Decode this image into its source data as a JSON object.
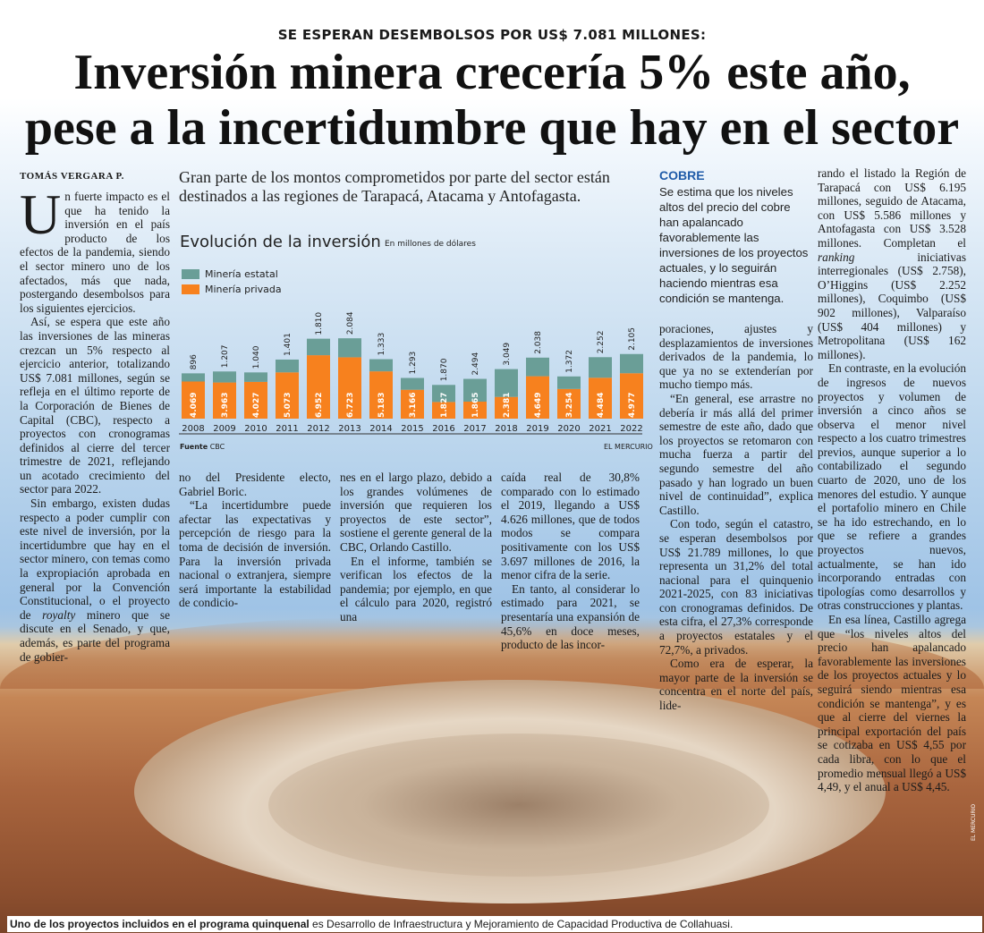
{
  "kicker": "SE ESPERAN DESEMBOLSOS POR US$ 7.081 MILLONES:",
  "headline_line1": "Inversión minera crecería 5% este año,",
  "headline_line2": "pese a la incertidumbre que hay en el sector",
  "byline": "TOMÁS VERGARA P.",
  "deck": "Gran parte de los montos comprometidos por parte del sector están destinados a las regiones de Tarapacá, Atacama y Antofagasta.",
  "sidebar": {
    "heading": "COBRE",
    "text": "Se estima que los niveles altos del precio del cobre han apalancado favorablemente las inversiones de los proyectos actuales, y lo seguirán haciendo mientras esa condición se mantenga."
  },
  "body": {
    "dropcap": "U",
    "c1_p1": "n fuerte impacto es el que ha tenido la inversión en el país producto de los efectos de la pandemia, siendo el sector minero uno de los afectados, más que nada, postergando desembolsos para los siguientes ejercicios.",
    "c1_p2": "Así, se espera que este año las inversiones de las mineras crezcan un 5% respecto al ejercicio anterior, totalizando US$ 7.081 millones, según se refleja en el último reporte de la Corporación de Bienes de Capital (CBC), respecto a proyectos con cronogramas definidos al cierre del tercer trimestre de 2021, reflejando un acotado crecimiento del sector para 2022.",
    "c1_p3": "Sin embargo, existen dudas respecto a poder cumplir con este nivel de inversión, por la incertidumbre que hay en el sector minero, con temas como la expropiación aprobada en general por la Convención Constitucional, o el proyecto de",
    "c1_p3_italic": "royalty",
    "c1_p3_end": " minero que se discute en el Senado, y que, además, es parte del programa de gobier-",
    "c2_p1": "no del Presidente electo, Gabriel Boric.",
    "c2_p2": "“La incertidumbre puede afectar las expectativas y percepción de riesgo para la toma de decisión de inversión. Para la inversión privada nacional o extranjera, siempre será importante la estabilidad de condicio-",
    "c3_p1": "nes en el largo plazo, debido a los grandes volúmenes de inversión que requieren los proyectos de este sector”, sostiene el gerente general de la CBC, Orlando Castillo.",
    "c3_p2": "En el informe, también se verifican los efectos de la pandemia; por ejemplo, en que el cálculo para 2020, registró una",
    "c4_p1": "caída real de 30,8% comparado con lo estimado el 2019, llegando a US$ 4.626 millones, que de todos modos se compara positivamente con los US$ 3.697 millones de 2016, la menor cifra de la serie.",
    "c4_p2": "En tanto, al considerar lo estimado para 2021, se presentaría una expansión de 45,6% en doce meses, producto de las incor-",
    "c5_p1": "poraciones, ajustes y desplazamientos de inversiones derivados de la pandemia, lo que ya no se extenderían por mucho tiempo más.",
    "c5_p2": "“En general, ese arrastre no debería ir más allá del primer semestre de este año, dado que los proyectos se retomaron con mucha fuerza a partir del segundo semestre del año pasado y han logrado un buen nivel de continuidad”, explica Castillo.",
    "c5_p3": "Con todo, según el catastro, se esperan desembolsos por US$ 21.789 millones, lo que representa un 31,2% del total nacional para el quinquenio 2021-2025, con 83 iniciativas con cronogramas definidos. De esta cifra, el 27,3% corresponde a proyectos estatales y el 72,7%, a privados.",
    "c5_p4": "Como era de esperar, la mayor parte de la inversión se concentra en el norte del país, lide-",
    "c6_p1": "rando el listado la Región de Tarapacá con US$ 6.195 millones, seguido de Atacama, con US$ 5.586 millones y Antofagasta con US$ 3.528 millones. Completan el",
    "c6_p1_italic": "ranking",
    "c6_p1_end": " iniciativas interregionales (US$ 2.758), O’Higgins (US$ 2.252 millones), Coquimbo (US$ 902 millones), Valparaíso (US$ 404 millones) y Metropolitana (US$ 162 millones).",
    "c6_p2": "En contraste, en la evolución de ingresos de nuevos proyectos y volumen de inversión a cinco años se observa el menor nivel respecto a los cuatro trimestres previos, aunque superior a lo contabilizado el segundo cuarto de 2020, uno de los menores del estudio. Y aunque el portafolio minero en Chile se ha ido estrechando, en lo que se refiere a grandes proyectos nuevos, actualmente, se han ido incorporando entradas con tipologías como desarrollos y otras construcciones y plantas.",
    "c6_p3": "En esa línea, Castillo agrega que “los niveles altos del precio han apalancado favorablemente las inversiones de los proyectos actuales y lo seguirá siendo mientras esa condición se mantenga”, y es que al cierre del viernes la principal exportación del país se cotizaba en US$ 4,55 por cada libra, con lo que el promedio mensual llegó a US$ 4,49, y el anual a US$ 4,45."
  },
  "chart_data": {
    "type": "bar",
    "title": "Evolución de la inversión",
    "subtitle": "En millones de dólares",
    "categories": [
      "2008",
      "2009",
      "2010",
      "2011",
      "2012",
      "2013",
      "2014",
      "2015",
      "2016",
      "2017",
      "2018",
      "2019",
      "2020",
      "2021",
      "2022"
    ],
    "series": [
      {
        "name": "Minería privada",
        "color": "#f7811e",
        "values": [
          "4.069",
          "3.963",
          "4.027",
          "5.073",
          "6.952",
          "6.723",
          "5.183",
          "3.166",
          "1.827",
          "1.865",
          "2.381",
          "4.649",
          "3.254",
          "4.484",
          "4.977"
        ],
        "numeric": [
          4069,
          3963,
          4027,
          5073,
          6952,
          6723,
          5183,
          3166,
          1827,
          1865,
          2381,
          4649,
          3254,
          4484,
          4977
        ]
      },
      {
        "name": "Minería estatal",
        "color": "#6a9e97",
        "values": [
          "896",
          "1.207",
          "1.040",
          "1.401",
          "1.810",
          "2.084",
          "1.333",
          "1.293",
          "1.870",
          "2.494",
          "3.049",
          "2.038",
          "1.372",
          "2.252",
          "2.105"
        ],
        "numeric": [
          896,
          1207,
          1040,
          1401,
          1810,
          2084,
          1333,
          1293,
          1870,
          2494,
          3049,
          2038,
          1372,
          2252,
          2105
        ]
      }
    ],
    "stacked": true,
    "legend_position": "top-left",
    "source_label": "Fuente",
    "source": "CBC",
    "publisher": "EL MERCURIO"
  },
  "caption_bold": "Uno de los proyectos incluidos en el programa quinquenal",
  "caption_rest": " es Desarrollo de Infraestructura y Mejoramiento de Capacidad Productiva de Collahuasi.",
  "photo_credit": "EL MERCURIO"
}
